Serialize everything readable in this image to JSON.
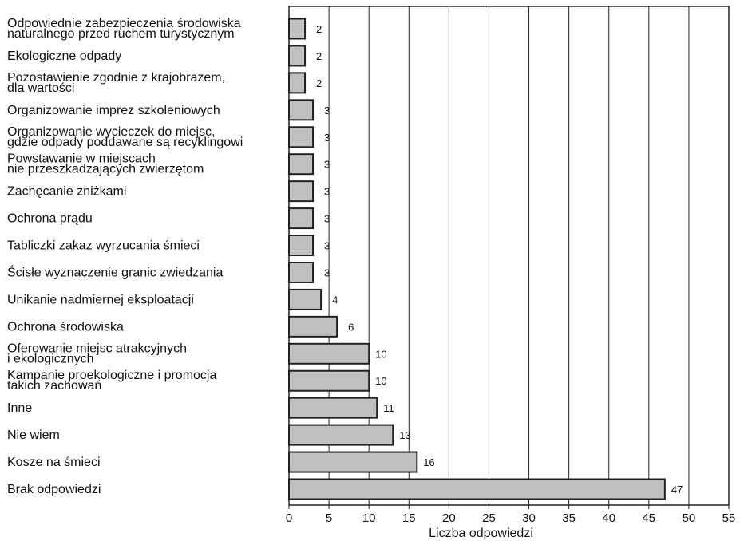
{
  "chart_data": {
    "type": "bar",
    "orientation": "horizontal",
    "categories": [
      [
        "Odpowiednie zabezpieczenia środowiska",
        "naturalnego przed ruchem turystycznym"
      ],
      [
        "Ekologiczne odpady"
      ],
      [
        "Pozostawienie zgodnie z krajobrazem,",
        "dla wartości"
      ],
      [
        "Organizowanie imprez szkoleniowych"
      ],
      [
        "Organizowanie wycieczek do miejsc,",
        "gdzie odpady poddawane są recyklingowi"
      ],
      [
        "Powstawanie w miejscach",
        "nie przeszkadzających zwierzętom"
      ],
      [
        "Zachęcanie zniżkami"
      ],
      [
        "Ochrona prądu"
      ],
      [
        "Tabliczki zakaz wyrzucania śmieci"
      ],
      [
        "Ścisłe wyznaczenie granic zwiedzania"
      ],
      [
        "Unikanie nadmiernej eksploatacji"
      ],
      [
        "Ochrona środowiska"
      ],
      [
        "Oferowanie miejsc atrakcyjnych",
        "i ekologicznych"
      ],
      [
        "Kampanie proekologiczne i promocja",
        "takich zachowań"
      ],
      [
        "Inne"
      ],
      [
        "Nie wiem"
      ],
      [
        "Kosze na śmieci"
      ],
      [
        "Brak odpowiedzi"
      ]
    ],
    "values": [
      2,
      2,
      2,
      3,
      3,
      3,
      3,
      3,
      3,
      3,
      4,
      6,
      10,
      10,
      11,
      13,
      16,
      47
    ],
    "value_labels": [
      "2",
      "2",
      "2",
      "3",
      "3",
      "3",
      "3",
      "3",
      "3",
      "3",
      "4",
      "6",
      "10",
      "10",
      "11",
      "13",
      "16",
      "47"
    ],
    "xlabel": "Liczba odpowiedzi",
    "ylabel": "",
    "xlim": [
      0,
      55
    ],
    "xticks": [
      0,
      5,
      10,
      15,
      20,
      25,
      30,
      35,
      40,
      45,
      50,
      55
    ],
    "grid": "vertical",
    "bar_color": "#c0c0c0",
    "bar_edge_color": "#222222"
  }
}
